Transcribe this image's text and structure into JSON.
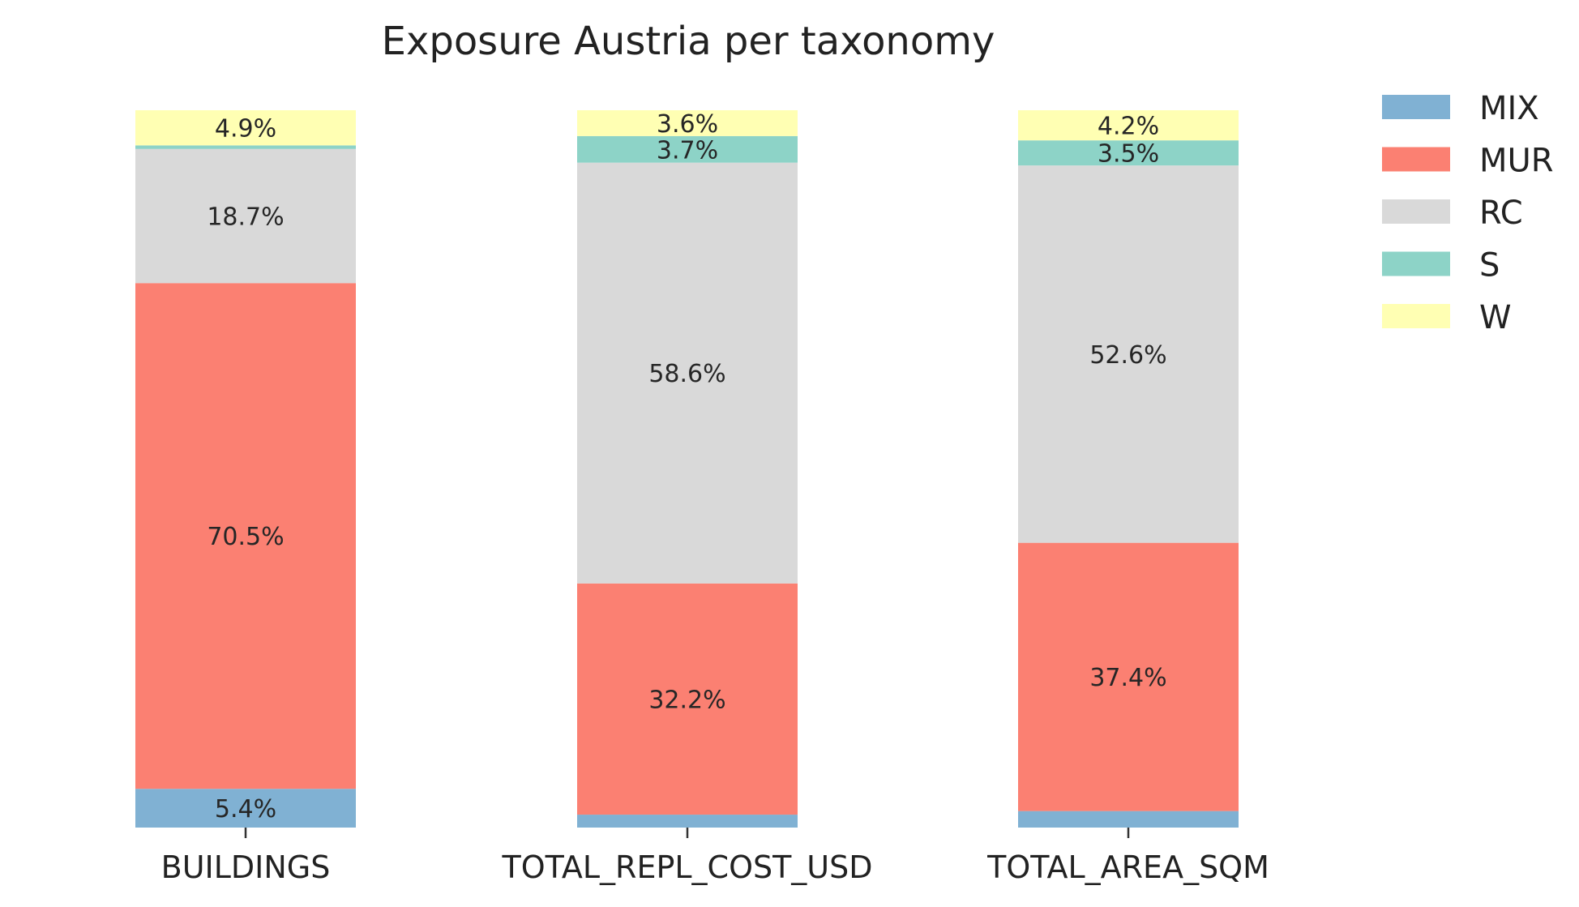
{
  "chart_data": {
    "type": "bar",
    "stacked": true,
    "normalized": true,
    "title": "Exposure Austria per taxonomy",
    "xlabel": "",
    "ylabel": "",
    "categories": [
      "BUILDINGS",
      "TOTAL_REPL_COST_USD",
      "TOTAL_AREA_SQM"
    ],
    "ylim": [
      0,
      100
    ],
    "grid": false,
    "legend_position": "right",
    "series": [
      {
        "name": "MIX",
        "color": "#80b1d3",
        "values": [
          5.4,
          1.8,
          2.3
        ],
        "labels": [
          "5.4%",
          "",
          ""
        ]
      },
      {
        "name": "MUR",
        "color": "#fb8072",
        "values": [
          70.5,
          32.2,
          37.4
        ],
        "labels": [
          "70.5%",
          "32.2%",
          "37.4%"
        ]
      },
      {
        "name": "RC",
        "color": "#d9d9d9",
        "values": [
          18.7,
          58.6,
          52.6
        ],
        "labels": [
          "18.7%",
          "58.6%",
          "52.6%"
        ]
      },
      {
        "name": "S",
        "color": "#8dd3c7",
        "values": [
          0.5,
          3.7,
          3.5
        ],
        "labels": [
          "",
          "3.7%",
          "3.5%"
        ]
      },
      {
        "name": "W",
        "color": "#ffffb3",
        "values": [
          4.9,
          3.6,
          4.2
        ],
        "labels": [
          "4.9%",
          "3.6%",
          "4.2%"
        ]
      }
    ]
  }
}
